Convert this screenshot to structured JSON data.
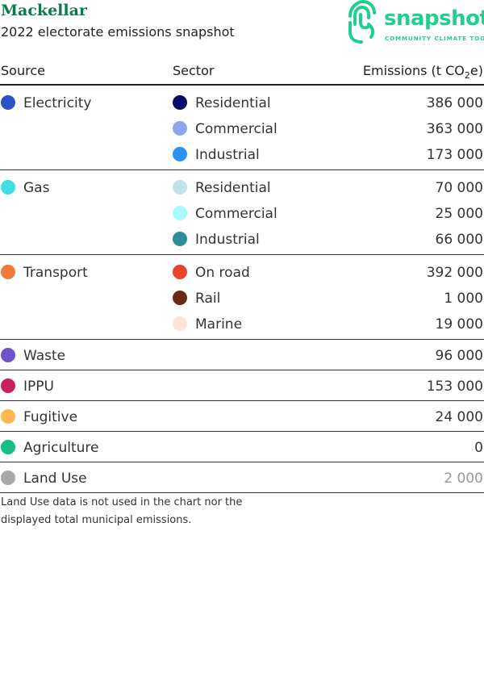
{
  "header": {
    "title": "Mackellar",
    "subtitle": "2022 electorate emissions snapshot"
  },
  "logo": {
    "word": "snapshot",
    "tagline": "COMMUNITY CLIMATE TOOL",
    "icon": "fingerprint-icon",
    "color": "#1fcf8d"
  },
  "table": {
    "headers": {
      "source": "Source",
      "sector": "Sector",
      "emissions_prefix": "Emissions (t CO",
      "emissions_sub": "2",
      "emissions_suffix": "e)"
    },
    "groups": [
      {
        "source": "Electricity",
        "color": "#2a53c8",
        "sectors": [
          {
            "name": "Residential",
            "color": "#0b0a6b",
            "value": "386 000"
          },
          {
            "name": "Commercial",
            "color": "#8ea6ec",
            "value": "363 000"
          },
          {
            "name": "Industrial",
            "color": "#2b93ef",
            "value": "173 000"
          }
        ]
      },
      {
        "source": "Gas",
        "color": "#3ddfe0",
        "sectors": [
          {
            "name": "Residential",
            "color": "#bfe3e6",
            "value": "70 000"
          },
          {
            "name": "Commercial",
            "color": "#a9fbff",
            "value": "25 000"
          },
          {
            "name": "Industrial",
            "color": "#2e8c97",
            "value": "66 000"
          }
        ]
      },
      {
        "source": "Transport",
        "color": "#f07a38",
        "sectors": [
          {
            "name": "On road",
            "color": "#e8452e",
            "value": "392 000"
          },
          {
            "name": "Rail",
            "color": "#6b2a12",
            "value": "1 000"
          },
          {
            "name": "Marine",
            "color": "#fde4d8",
            "value": "19 000"
          }
        ]
      }
    ],
    "singles": [
      {
        "source": "Waste",
        "color": "#6e52c9",
        "value": "96 000"
      },
      {
        "source": "IPPU",
        "color": "#c9215a",
        "value": "153 000"
      },
      {
        "source": "Fugitive",
        "color": "#fbb94d",
        "value": "24 000"
      },
      {
        "source": "Agriculture",
        "color": "#16bf7f",
        "value": "0"
      },
      {
        "source": "Land Use",
        "color": "#a9a9a9",
        "value": "2 000",
        "muted": true
      }
    ]
  },
  "footnote": "Land Use data is not used in the chart nor the displayed total municipal emissions."
}
